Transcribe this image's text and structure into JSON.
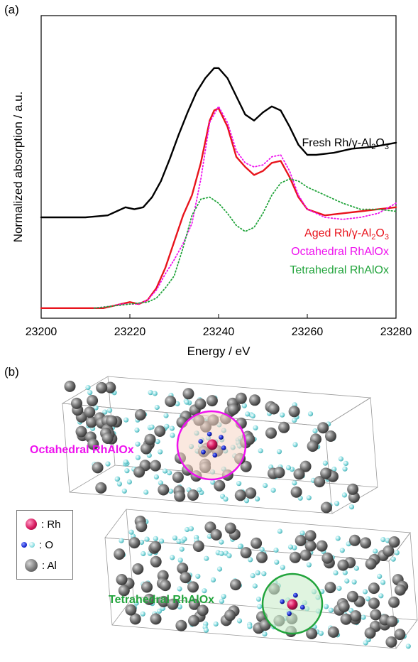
{
  "panel_a_label": "(a)",
  "panel_b_label": "(b)",
  "chart_data": {
    "type": "line",
    "xlabel": "Energy / eV",
    "ylabel": "Normalized absorption / a.u.",
    "xlim": [
      23200,
      23280
    ],
    "x_ticks": [
      "23200",
      "23220",
      "23240",
      "23260",
      "23280"
    ],
    "y_ticks_shown": false,
    "series": [
      {
        "name": "Fresh Rh/γ-Al2O3",
        "label_main": "Fresh Rh/γ-Al",
        "label_sub": "2",
        "label_main2": "O",
        "label_sub2": "3",
        "color": "#000000",
        "style": "solid",
        "x": [
          23200,
          23210,
          23215,
          23217,
          23219,
          23221,
          23223,
          23225,
          23227,
          23229,
          23231,
          23233,
          23235,
          23237,
          23239,
          23240,
          23242,
          23244,
          23246,
          23248,
          23250,
          23252,
          23254,
          23256,
          23258,
          23260,
          23262,
          23266,
          23270,
          23275,
          23280
        ],
        "y": [
          0.45,
          0.45,
          0.46,
          0.48,
          0.5,
          0.49,
          0.5,
          0.55,
          0.63,
          0.74,
          0.86,
          0.97,
          1.07,
          1.14,
          1.19,
          1.19,
          1.14,
          1.05,
          0.96,
          0.93,
          0.97,
          1.0,
          0.98,
          0.9,
          0.81,
          0.76,
          0.76,
          0.77,
          0.79,
          0.8,
          0.82
        ]
      },
      {
        "name": "Aged Rh/γ-Al2O3",
        "label_main": "Aged Rh/γ-Al",
        "label_sub": "2",
        "label_main2": "O",
        "label_sub2": "3",
        "color": "#e8141c",
        "style": "solid",
        "x": [
          23200,
          23214,
          23216,
          23218,
          23220,
          23222,
          23224,
          23226,
          23228,
          23230,
          23232,
          23234,
          23236,
          23238,
          23239,
          23240,
          23242,
          23244,
          23246,
          23248,
          23250,
          23252,
          23254,
          23256,
          23258,
          23260,
          23264,
          23268,
          23272,
          23276,
          23280
        ],
        "y": [
          0.0,
          0.0,
          0.01,
          0.02,
          0.03,
          0.02,
          0.04,
          0.1,
          0.2,
          0.33,
          0.46,
          0.56,
          0.72,
          0.93,
          0.98,
          0.99,
          0.9,
          0.75,
          0.7,
          0.66,
          0.68,
          0.72,
          0.73,
          0.65,
          0.55,
          0.49,
          0.46,
          0.47,
          0.48,
          0.49,
          0.5
        ]
      },
      {
        "name": "Octahedral RhAlOx",
        "color": "#ee11ee",
        "style": "dotted",
        "x": [
          23212,
          23216,
          23218,
          23220,
          23222,
          23224,
          23226,
          23228,
          23230,
          23232,
          23234,
          23236,
          23238,
          23240,
          23242,
          23244,
          23246,
          23248,
          23250,
          23252,
          23254,
          23256,
          23258,
          23260,
          23264,
          23268,
          23272,
          23276,
          23280
        ],
        "y": [
          0.0,
          0.01,
          0.02,
          0.02,
          0.02,
          0.04,
          0.09,
          0.17,
          0.24,
          0.32,
          0.42,
          0.64,
          0.92,
          1.0,
          0.92,
          0.78,
          0.72,
          0.7,
          0.71,
          0.75,
          0.76,
          0.68,
          0.56,
          0.49,
          0.45,
          0.44,
          0.45,
          0.47,
          0.52
        ]
      },
      {
        "name": "Tetrahedral RhAlOx",
        "color": "#22a43c",
        "style": "dotted",
        "x": [
          23212,
          23216,
          23220,
          23224,
          23226,
          23228,
          23230,
          23232,
          23234,
          23236,
          23238,
          23240,
          23242,
          23244,
          23246,
          23248,
          23250,
          23252,
          23254,
          23256,
          23258,
          23260,
          23264,
          23268,
          23272,
          23276,
          23280
        ],
        "y": [
          0.0,
          0.01,
          0.02,
          0.03,
          0.05,
          0.1,
          0.16,
          0.3,
          0.46,
          0.54,
          0.55,
          0.52,
          0.47,
          0.41,
          0.38,
          0.4,
          0.47,
          0.56,
          0.62,
          0.64,
          0.63,
          0.6,
          0.56,
          0.52,
          0.49,
          0.49,
          0.48
        ]
      }
    ],
    "ylim": [
      -0.05,
      1.45
    ]
  },
  "structure": {
    "octahedral_label": "Octahedral RhAlOx",
    "tetrahedral_label": "Tetrahedral RhAlOx",
    "octahedral_color": "#ee11ee",
    "tetrahedral_color": "#22a43c",
    "legend": [
      {
        "label": ": Rh",
        "icon": "rh-atom-icon",
        "color": "#d81b60"
      },
      {
        "label": ": O",
        "icon": "o-atom-icon",
        "color": "#1a2bd4"
      },
      {
        "label": ": Al",
        "icon": "al-atom-icon",
        "color": "#808080"
      }
    ]
  }
}
